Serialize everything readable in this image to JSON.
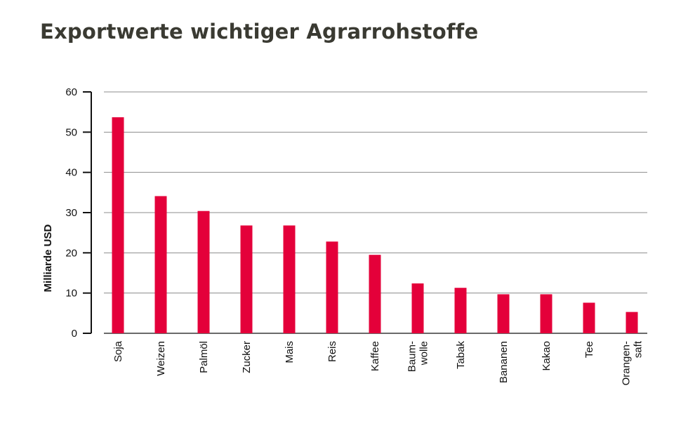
{
  "title": "Exportwerte wichtiger Agrarrohstoffe",
  "colors": {
    "bar": "#e4003a",
    "grid": "#8c8c8c",
    "axis": "#111111",
    "title": "#3a3a32"
  },
  "chart_data": {
    "type": "bar",
    "title": "Exportwerte wichtiger Agrarrohstoffe",
    "xlabel": "",
    "ylabel": "Milliarde USD",
    "ylim": [
      0,
      60
    ],
    "yticks": [
      0,
      10,
      20,
      30,
      40,
      50,
      60
    ],
    "grid": true,
    "categories": [
      [
        "Soja"
      ],
      [
        "Weizen"
      ],
      [
        "Palmöl"
      ],
      [
        "Zucker"
      ],
      [
        "Mais"
      ],
      [
        "Reis"
      ],
      [
        "Kaffee"
      ],
      [
        "Baum-",
        "wolle"
      ],
      [
        "Tabak"
      ],
      [
        "Bananen"
      ],
      [
        "Kakao"
      ],
      [
        "Tee"
      ],
      [
        "Orangen-",
        "saft"
      ]
    ],
    "values": [
      53.7,
      34.1,
      30.4,
      26.8,
      26.8,
      22.8,
      19.5,
      12.4,
      11.3,
      9.7,
      9.7,
      7.6,
      5.3
    ]
  }
}
